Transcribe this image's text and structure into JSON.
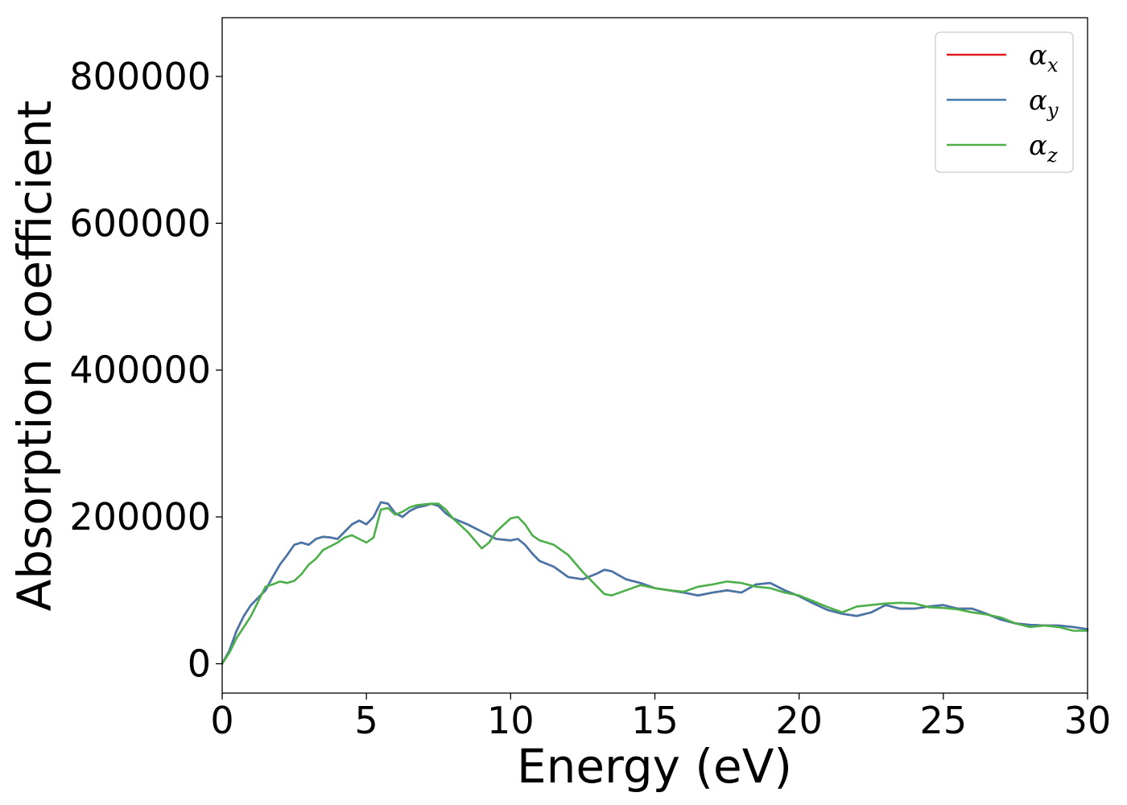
{
  "chart_data": {
    "type": "line",
    "title": "",
    "xlabel": "Energy (eV)",
    "ylabel": "Absorption coefficient",
    "xlim": [
      0,
      30
    ],
    "ylim": [
      -40000,
      880000
    ],
    "xticks": [
      0,
      5,
      10,
      15,
      20,
      25,
      30
    ],
    "yticks": [
      0,
      200000,
      400000,
      600000,
      800000
    ],
    "xtick_labels": [
      "0",
      "5",
      "10",
      "15",
      "20",
      "25",
      "30"
    ],
    "ytick_labels": [
      "0",
      "200000",
      "400000",
      "600000",
      "800000"
    ],
    "grid": false,
    "legend_position": "top-right",
    "series": [
      {
        "name": "α_x",
        "label_base": "α",
        "label_sub": "x",
        "color": "#e41a1c",
        "x": [
          0,
          0.25,
          0.5,
          0.75,
          1.0,
          1.25,
          1.5,
          1.75,
          2.0,
          2.25,
          2.5,
          2.75,
          3.0,
          3.25,
          3.5,
          3.75,
          4.0,
          4.25,
          4.5,
          4.75,
          5.0,
          5.25,
          5.5,
          5.75,
          6.0,
          6.25,
          6.5,
          6.75,
          7.0,
          7.25,
          7.5,
          7.75,
          8.0,
          8.5,
          9.0,
          9.5,
          10.0,
          10.25,
          10.5,
          10.75,
          11.0,
          11.5,
          12.0,
          12.5,
          13.0,
          13.25,
          13.5,
          14.0,
          14.5,
          15.0,
          15.5,
          16.0,
          16.5,
          17.0,
          17.5,
          18.0,
          18.5,
          19.0,
          19.5,
          20.0,
          20.5,
          21.0,
          21.5,
          22.0,
          22.5,
          23.0,
          23.5,
          24.0,
          24.5,
          25.0,
          25.5,
          26.0,
          26.5,
          27.0,
          27.5,
          28.0,
          28.5,
          29.0,
          29.5,
          30.0
        ],
        "y": [
          0,
          18000,
          45000,
          65000,
          80000,
          90000,
          100000,
          118000,
          135000,
          148000,
          162000,
          165000,
          162000,
          170000,
          173000,
          172000,
          170000,
          180000,
          190000,
          195000,
          190000,
          200000,
          220000,
          218000,
          205000,
          200000,
          208000,
          213000,
          215000,
          218000,
          215000,
          205000,
          198000,
          190000,
          180000,
          170000,
          168000,
          170000,
          162000,
          150000,
          140000,
          132000,
          118000,
          115000,
          123000,
          128000,
          126000,
          115000,
          110000,
          103000,
          100000,
          97000,
          93000,
          97000,
          100000,
          97000,
          108000,
          110000,
          100000,
          92000,
          82000,
          73000,
          68000,
          65000,
          70000,
          80000,
          75000,
          75000,
          78000,
          80000,
          75000,
          75000,
          68000,
          60000,
          55000,
          53000,
          52000,
          52000,
          50000,
          47000
        ]
      },
      {
        "name": "α_y",
        "label_base": "α",
        "label_sub": "y",
        "color": "#4477aa",
        "x": [
          0,
          0.25,
          0.5,
          0.75,
          1.0,
          1.25,
          1.5,
          1.75,
          2.0,
          2.25,
          2.5,
          2.75,
          3.0,
          3.25,
          3.5,
          3.75,
          4.0,
          4.25,
          4.5,
          4.75,
          5.0,
          5.25,
          5.5,
          5.75,
          6.0,
          6.25,
          6.5,
          6.75,
          7.0,
          7.25,
          7.5,
          7.75,
          8.0,
          8.5,
          9.0,
          9.5,
          10.0,
          10.25,
          10.5,
          10.75,
          11.0,
          11.5,
          12.0,
          12.5,
          13.0,
          13.25,
          13.5,
          14.0,
          14.5,
          15.0,
          15.5,
          16.0,
          16.5,
          17.0,
          17.5,
          18.0,
          18.5,
          19.0,
          19.5,
          20.0,
          20.5,
          21.0,
          21.5,
          22.0,
          22.5,
          23.0,
          23.5,
          24.0,
          24.5,
          25.0,
          25.5,
          26.0,
          26.5,
          27.0,
          27.5,
          28.0,
          28.5,
          29.0,
          29.5,
          30.0
        ],
        "y": [
          0,
          18000,
          45000,
          65000,
          80000,
          90000,
          100000,
          118000,
          135000,
          148000,
          162000,
          165000,
          162000,
          170000,
          173000,
          172000,
          170000,
          180000,
          190000,
          195000,
          190000,
          200000,
          220000,
          218000,
          205000,
          200000,
          208000,
          213000,
          215000,
          218000,
          215000,
          205000,
          198000,
          190000,
          180000,
          170000,
          168000,
          170000,
          162000,
          150000,
          140000,
          132000,
          118000,
          115000,
          123000,
          128000,
          126000,
          115000,
          110000,
          103000,
          100000,
          97000,
          93000,
          97000,
          100000,
          97000,
          108000,
          110000,
          100000,
          92000,
          82000,
          73000,
          68000,
          65000,
          70000,
          80000,
          75000,
          75000,
          78000,
          80000,
          75000,
          75000,
          68000,
          60000,
          55000,
          53000,
          52000,
          52000,
          50000,
          47000
        ]
      },
      {
        "name": "α_z",
        "label_base": "α",
        "label_sub": "z",
        "color": "#4daf4a",
        "x": [
          0,
          0.25,
          0.5,
          0.75,
          1.0,
          1.25,
          1.5,
          1.75,
          2.0,
          2.25,
          2.5,
          2.75,
          3.0,
          3.25,
          3.5,
          3.75,
          4.0,
          4.25,
          4.5,
          4.75,
          5.0,
          5.25,
          5.5,
          5.75,
          6.0,
          6.25,
          6.5,
          6.75,
          7.0,
          7.25,
          7.5,
          7.75,
          8.0,
          8.5,
          9.0,
          9.25,
          9.5,
          10.0,
          10.25,
          10.5,
          10.75,
          11.0,
          11.5,
          12.0,
          12.5,
          13.0,
          13.25,
          13.5,
          14.0,
          14.5,
          15.0,
          15.5,
          16.0,
          16.5,
          17.0,
          17.5,
          18.0,
          18.5,
          19.0,
          19.5,
          20.0,
          20.5,
          21.0,
          21.5,
          22.0,
          22.5,
          23.0,
          23.5,
          24.0,
          24.5,
          25.0,
          25.5,
          26.0,
          26.5,
          27.0,
          27.5,
          28.0,
          28.5,
          29.0,
          29.5,
          30.0
        ],
        "y": [
          0,
          15000,
          35000,
          50000,
          65000,
          85000,
          105000,
          108000,
          112000,
          110000,
          113000,
          122000,
          135000,
          143000,
          155000,
          160000,
          165000,
          172000,
          175000,
          170000,
          165000,
          172000,
          210000,
          212000,
          203000,
          207000,
          213000,
          216000,
          217000,
          218000,
          218000,
          210000,
          198000,
          180000,
          157000,
          165000,
          180000,
          198000,
          200000,
          190000,
          175000,
          168000,
          162000,
          148000,
          125000,
          105000,
          95000,
          93000,
          100000,
          107000,
          103000,
          100000,
          98000,
          105000,
          108000,
          112000,
          110000,
          105000,
          103000,
          97000,
          93000,
          85000,
          77000,
          70000,
          78000,
          80000,
          82000,
          83000,
          82000,
          77000,
          76000,
          74000,
          70000,
          67000,
          63000,
          55000,
          50000,
          52000,
          50000,
          45000,
          45000
        ]
      }
    ]
  }
}
